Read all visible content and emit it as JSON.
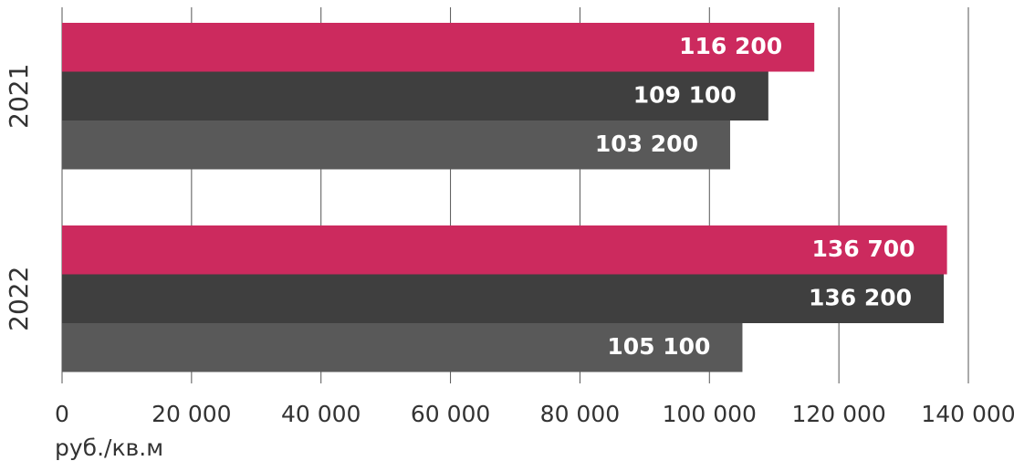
{
  "chart_data": {
    "type": "bar",
    "orientation": "horizontal",
    "categories": [
      "2021",
      "2022"
    ],
    "series": [
      {
        "color": "#cc2a5e",
        "values": [
          116200,
          136700
        ],
        "value_labels": [
          "116 200",
          "136 700"
        ]
      },
      {
        "color": "#3f3f3f",
        "values": [
          109100,
          136200
        ],
        "value_labels": [
          "109 100",
          "136 200"
        ]
      },
      {
        "color": "#595959",
        "values": [
          103200,
          105100
        ],
        "value_labels": [
          "103 200",
          "105 100"
        ]
      }
    ],
    "xlabel": "руб./кв.м",
    "xlim": [
      0,
      140000
    ],
    "xticks": [
      0,
      {
        "value": 20000,
        "label": "20 000"
      },
      {
        "value": 40000,
        "label": "40 000"
      },
      {
        "value": 60000,
        "label": "60 000"
      },
      {
        "value": 80000,
        "label": "80 000"
      },
      {
        "value": 100000,
        "label": "100 000"
      },
      {
        "value": 120000,
        "label": "120 000"
      },
      {
        "value": 140000,
        "label": "140 000"
      }
    ],
    "grid": true
  }
}
